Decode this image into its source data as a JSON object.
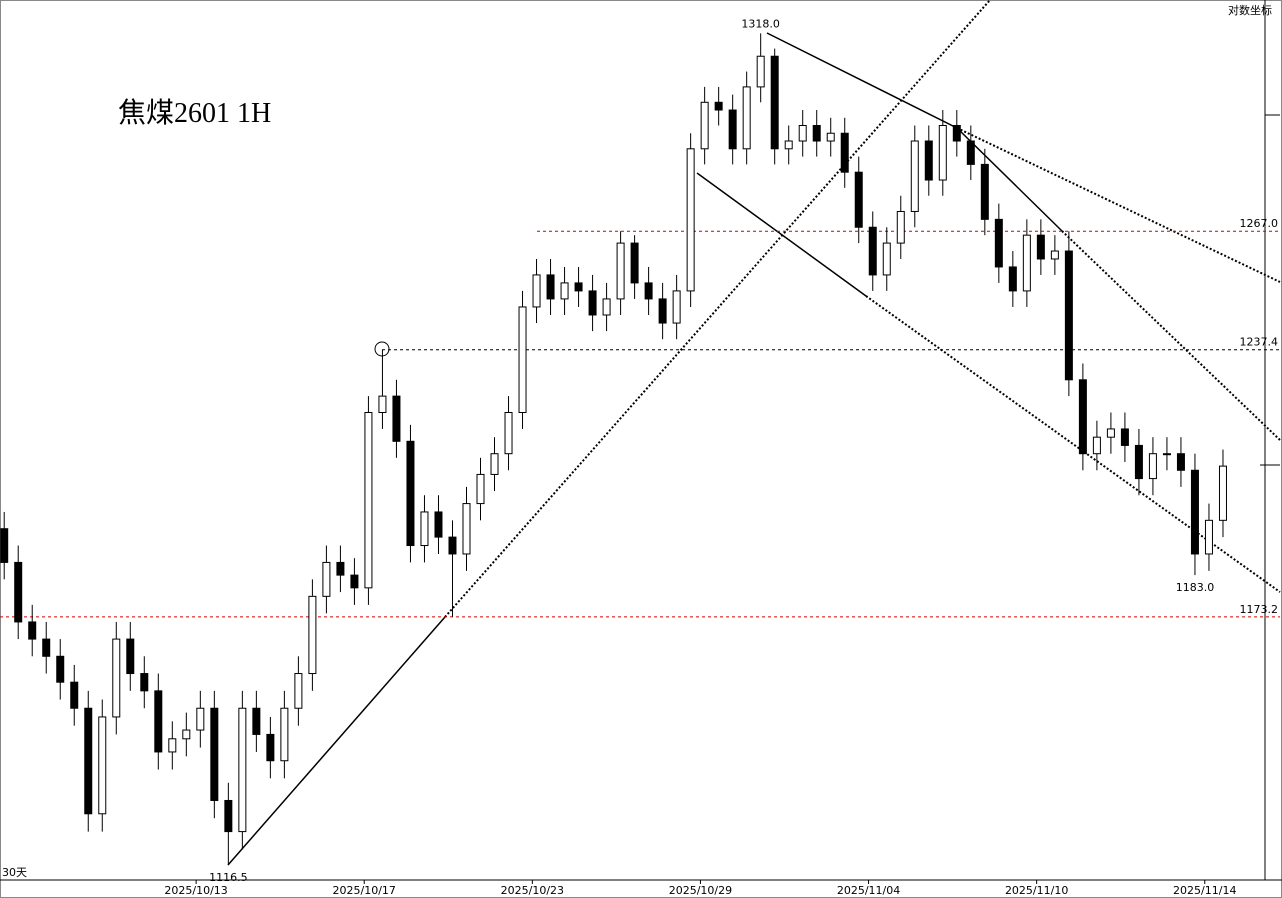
{
  "chart_data": {
    "type": "candlestick",
    "title": "焦煤2601  1H",
    "scale_note": "对数坐标",
    "period_label": "30天",
    "log_scale": true,
    "ylim": [
      1113.2,
      1326.8
    ],
    "xlim": [
      -0.3,
      90
    ],
    "xticks": [
      {
        "value": 13.7,
        "label": "2025/10/13"
      },
      {
        "value": 25.7,
        "label": "2025/10/17"
      },
      {
        "value": 37.7,
        "label": "2025/10/23"
      },
      {
        "value": 49.7,
        "label": "2025/10/29"
      },
      {
        "value": 61.7,
        "label": "2025/11/04"
      },
      {
        "value": 73.7,
        "label": "2025/11/10"
      },
      {
        "value": 85.7,
        "label": "2025/11/14"
      }
    ],
    "up_color": "#ffffff",
    "down_color": "#000000",
    "open": [
      1194,
      1186,
      1172,
      1168,
      1164,
      1158,
      1152,
      1128,
      1150,
      1168,
      1160,
      1156,
      1142,
      1145,
      1147,
      1152,
      1131,
      1124,
      1152,
      1146,
      1140,
      1152,
      1160,
      1178,
      1186,
      1183,
      1180,
      1222,
      1226,
      1215,
      1190,
      1198,
      1192,
      1188,
      1200,
      1207,
      1212,
      1222,
      1248,
      1256,
      1250,
      1254,
      1252,
      1246,
      1250,
      1264,
      1254,
      1250,
      1244,
      1252,
      1288,
      1300,
      1298,
      1288,
      1304,
      1312,
      1288,
      1290,
      1294,
      1290,
      1292,
      1282,
      1268,
      1256,
      1264,
      1272,
      1290,
      1280,
      1294,
      1290,
      1284,
      1270,
      1258,
      1252,
      1266,
      1260,
      1262,
      1230,
      1212,
      1216,
      1218,
      1214,
      1206,
      1212,
      1212,
      1208,
      1188,
      1196
    ],
    "high": [
      1198,
      1190,
      1176,
      1172,
      1168,
      1162,
      1156,
      1154,
      1172,
      1172,
      1164,
      1160,
      1149,
      1151,
      1156,
      1156,
      1135,
      1156,
      1156,
      1150,
      1156,
      1164,
      1182,
      1190,
      1190,
      1187,
      1226,
      1237.4,
      1230,
      1219,
      1202,
      1202,
      1196,
      1204,
      1211,
      1216,
      1226,
      1252,
      1260,
      1260,
      1258,
      1258,
      1256,
      1254,
      1267,
      1266,
      1258,
      1254,
      1256,
      1292,
      1304,
      1304,
      1302,
      1308,
      1318,
      1314,
      1294,
      1298,
      1298,
      1296,
      1296,
      1286,
      1272,
      1268,
      1276,
      1294,
      1294,
      1298,
      1298,
      1294,
      1288,
      1274,
      1262,
      1270,
      1270,
      1266,
      1267,
      1234,
      1220,
      1222,
      1222,
      1218,
      1216,
      1216,
      1216,
      1212,
      1200,
      1213
    ],
    "low": [
      1182,
      1168,
      1164,
      1160,
      1154,
      1148,
      1124,
      1124,
      1146,
      1156,
      1152,
      1138,
      1138,
      1141,
      1143,
      1127,
      1116.5,
      1120,
      1142,
      1136,
      1136,
      1148,
      1156,
      1174,
      1179,
      1176,
      1176,
      1218,
      1211,
      1186,
      1186,
      1188,
      1173.2,
      1184,
      1196,
      1203,
      1208,
      1218,
      1244,
      1246,
      1246,
      1248,
      1242,
      1242,
      1246,
      1250,
      1246,
      1240,
      1240,
      1248,
      1284,
      1294,
      1284,
      1284,
      1300,
      1284,
      1284,
      1286,
      1286,
      1286,
      1278,
      1264,
      1252,
      1252,
      1260,
      1268,
      1276,
      1276,
      1286,
      1280,
      1266,
      1254,
      1248,
      1248,
      1256,
      1256,
      1226,
      1208,
      1208,
      1212,
      1210,
      1202,
      1202,
      1208,
      1204,
      1183,
      1184,
      1192
    ],
    "close": [
      1186,
      1172,
      1168,
      1164,
      1158,
      1152,
      1128,
      1150,
      1168,
      1160,
      1156,
      1142,
      1145,
      1147,
      1152,
      1131,
      1124,
      1152,
      1146,
      1140,
      1152,
      1160,
      1178,
      1186,
      1183,
      1180,
      1222,
      1226,
      1215,
      1190,
      1198,
      1192,
      1188,
      1200,
      1207,
      1212,
      1222,
      1248,
      1256,
      1250,
      1254,
      1252,
      1246,
      1250,
      1264,
      1254,
      1250,
      1244,
      1252,
      1288,
      1300,
      1298,
      1288,
      1304,
      1312,
      1288,
      1290,
      1294,
      1290,
      1292,
      1282,
      1268,
      1256,
      1264,
      1272,
      1290,
      1280,
      1294,
      1290,
      1284,
      1270,
      1258,
      1252,
      1266,
      1260,
      1262,
      1230,
      1212,
      1216,
      1218,
      1214,
      1206,
      1212,
      1212,
      1208,
      1188,
      1196,
      1209
    ],
    "levels": [
      {
        "value": 1267,
        "label": "1267.0",
        "color": "#d40000"
      },
      {
        "value": 1237.4,
        "label": "1237.4",
        "color": "#000000"
      },
      {
        "value": 1173.2,
        "label": "1173.2",
        "color": "#d40000"
      }
    ],
    "annotations": [
      {
        "value": 1318,
        "label": "1318.0"
      },
      {
        "value": 1116.5,
        "label": "1116.5"
      },
      {
        "value": 1183,
        "label": "1183.0"
      }
    ]
  }
}
